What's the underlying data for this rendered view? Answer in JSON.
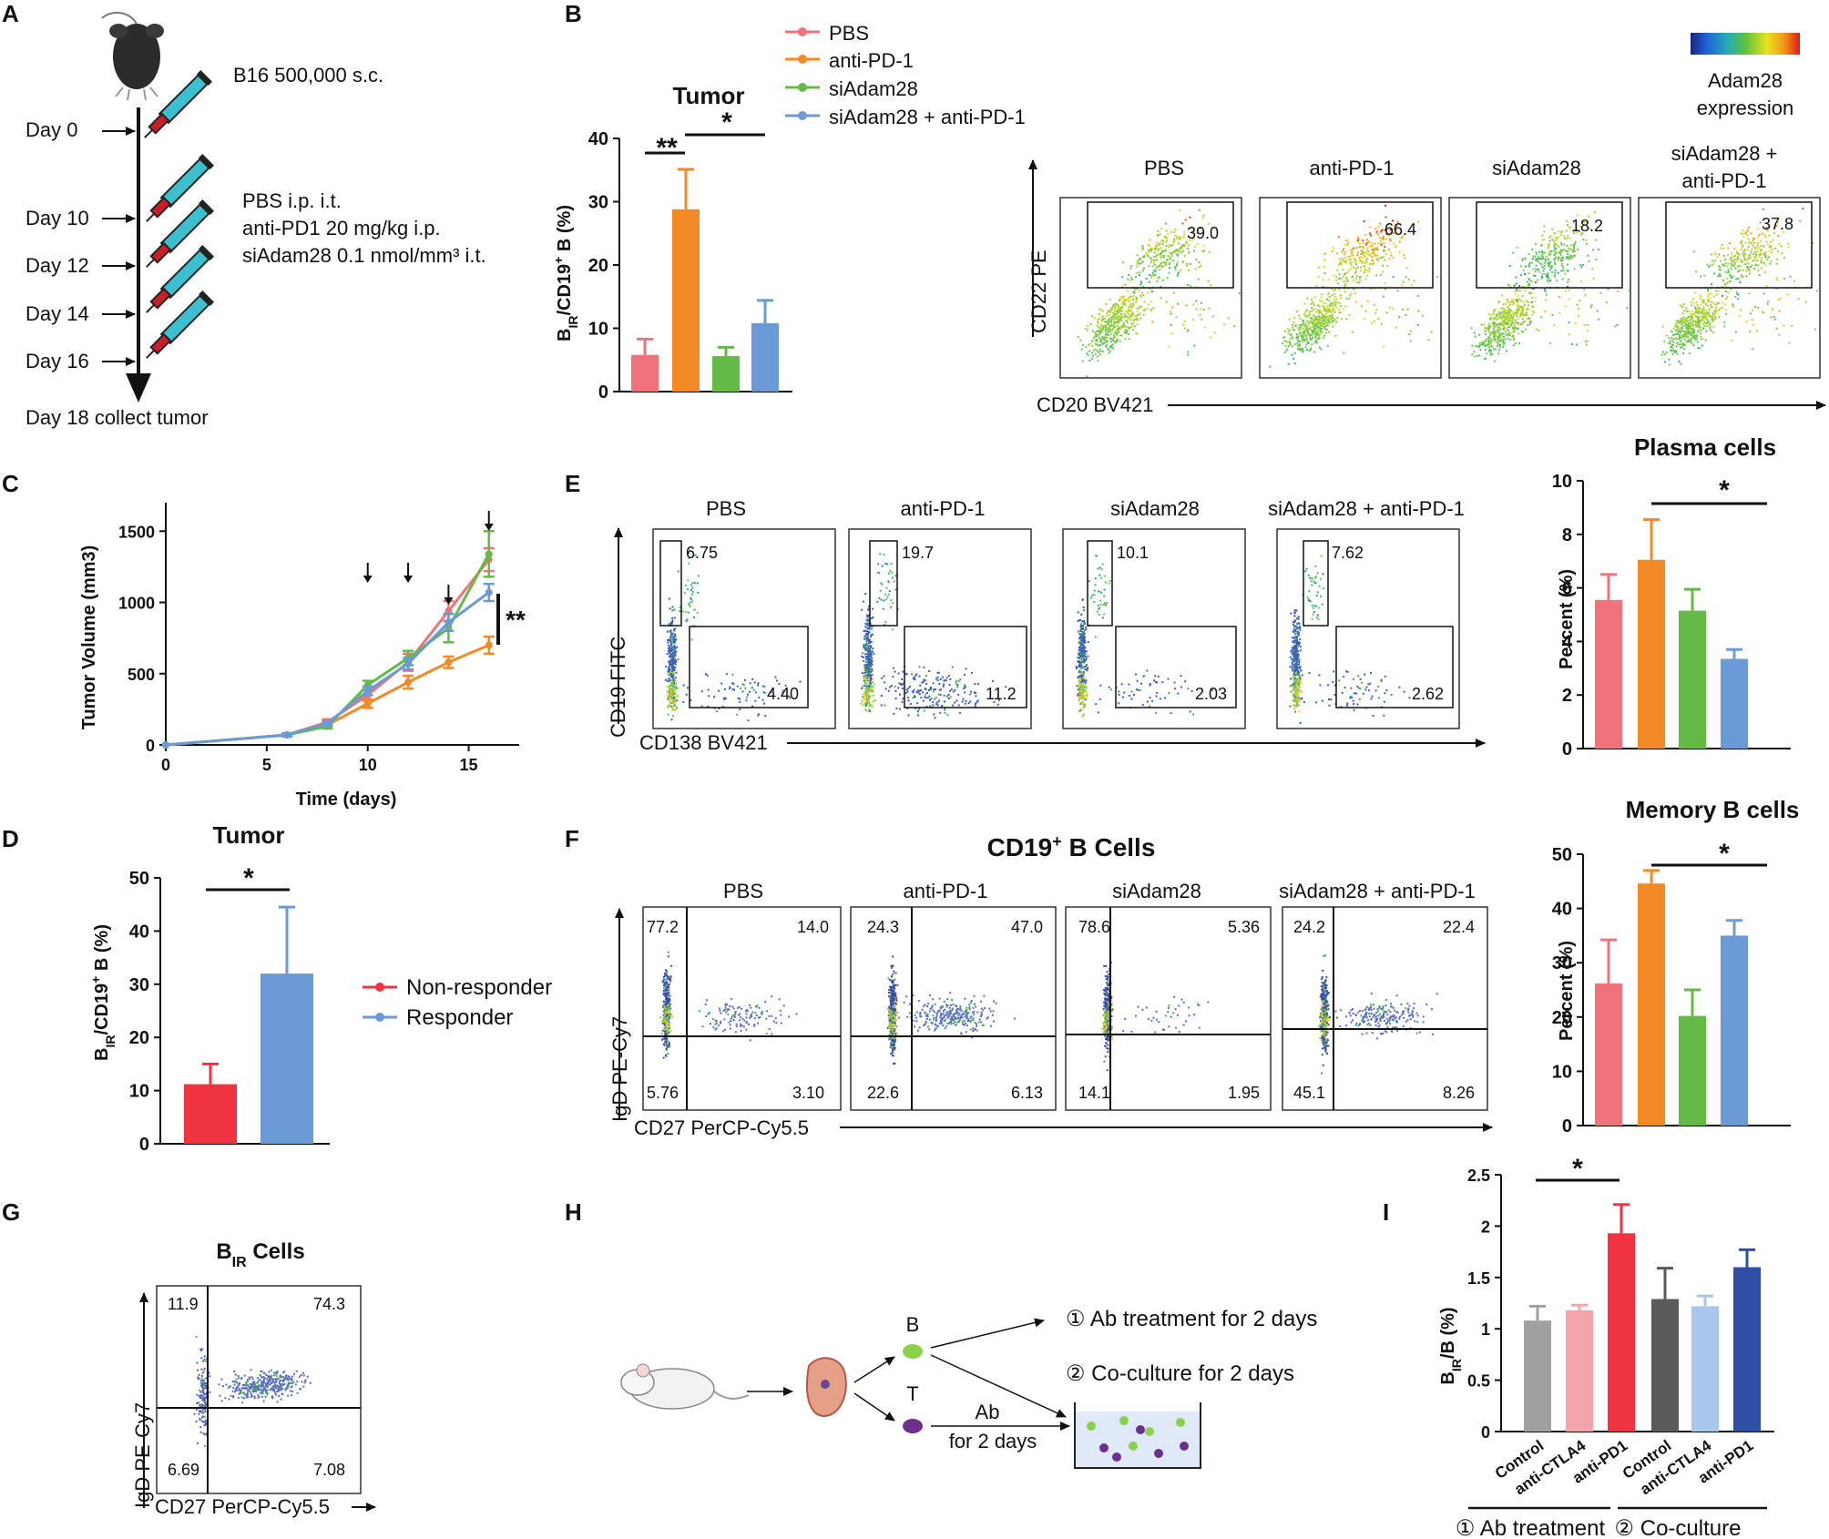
{
  "colors": {
    "pbs": "#f0737b",
    "antipd1": "#f28a25",
    "siadam28": "#63bb46",
    "combo": "#6a9bd6",
    "nonresponder": "#ef3340",
    "responder": "#6a9bd6",
    "control": "#a0a0a0",
    "antictla4": "#f3a5aa",
    "antipd1_red": "#ef3340",
    "co_control": "#5a5a5a",
    "co_antictla4": "#a7c7ec",
    "co_antipd1": "#2e4fa3"
  },
  "panels": [
    {
      "id": "A",
      "label": "A",
      "injection": "B16 500,000 s.c.",
      "treatment": [
        "PBS i.p. i.t.",
        "anti-PD1 20 mg/kg i.p.",
        "siAdam28 0.1 nmol/mm³ i.t."
      ],
      "days": [
        "Day 0",
        "Day 10",
        "Day 12",
        "Day 14",
        "Day 16"
      ],
      "final": "Day 18 collect tumor"
    },
    {
      "id": "B",
      "label": "B"
    },
    {
      "id": "C",
      "label": "C"
    },
    {
      "id": "D",
      "label": "D"
    },
    {
      "id": "E",
      "label": "E"
    },
    {
      "id": "F",
      "label": "F"
    },
    {
      "id": "G",
      "label": "G"
    },
    {
      "id": "H",
      "label": "H",
      "b": "B",
      "t": "T",
      "ab": "Ab",
      "for2days": "for 2 days",
      "step1": "① Ab treatment for 2 days",
      "step2": "② Co-culture for 2 days"
    },
    {
      "id": "I",
      "label": "I"
    }
  ],
  "colorbar": {
    "label1": "Adam28",
    "label2": "expression"
  },
  "flow_B": {
    "xaxis": "CD20 BV421",
    "yaxis": "CD22 PE",
    "titles": [
      "PBS",
      "anti-PD-1",
      "siAdam28",
      "siAdam28 +",
      "anti-PD-1"
    ],
    "gates": [
      "39.0",
      "66.4",
      "18.2",
      "37.8"
    ]
  },
  "flow_E": {
    "xaxis": "CD138 BV421",
    "yaxis": "CD19 FITC",
    "titles": [
      "PBS",
      "anti-PD-1",
      "siAdam28",
      "siAdam28 + anti-PD-1"
    ],
    "upper": [
      "6.75",
      "19.7",
      "10.1",
      "7.62"
    ],
    "lower": [
      "4.40",
      "11.2",
      "2.03",
      "2.62"
    ]
  },
  "flow_F": {
    "title": "CD19",
    "title_sup": "+",
    "title_rest": " B Cells",
    "xaxis": "CD27 PerCP-Cy5.5",
    "yaxis": "IgD PE-Cy7",
    "titles": [
      "PBS",
      "anti-PD-1",
      "siAdam28",
      "siAdam28 + anti-PD-1"
    ],
    "ul": [
      "77.2",
      "24.3",
      "78.6",
      "24.2"
    ],
    "ur": [
      "14.0",
      "47.0",
      "5.36",
      "22.4"
    ],
    "ll": [
      "5.76",
      "22.6",
      "14.1",
      "45.1"
    ],
    "lr": [
      "3.10",
      "6.13",
      "1.95",
      "8.26"
    ]
  },
  "flow_G": {
    "title": "B",
    "title_sub": "IR",
    "title_rest": " Cells",
    "xaxis": "CD27 PerCP-Cy5.5",
    "yaxis": "IgD PE-Cy7",
    "ul": "11.9",
    "ur": "74.3",
    "ll": "6.69",
    "lr": "7.08"
  },
  "chart_data": [
    {
      "panel": "B",
      "type": "bar",
      "title": "Tumor",
      "ylabel_main": "B",
      "ylabel_sub": "IR",
      "ylabel_rest": "/CD19",
      "ylabel_sup": "+",
      "ylabel_end": " B (%)",
      "categories": [
        "PBS",
        "anti-PD-1",
        "siAdam28",
        "siAdam28 + anti-PD-1"
      ],
      "values": [
        5.8,
        28.8,
        5.6,
        10.8
      ],
      "errors": [
        2.5,
        6.3,
        1.4,
        3.6
      ],
      "ylim": [
        0,
        40
      ],
      "yticks": [
        "0",
        "10",
        "20",
        "30",
        "40"
      ],
      "significance": [
        "**",
        "*"
      ]
    },
    {
      "panel": "C",
      "type": "line",
      "xlabel": "Time (days)",
      "ylabel": "Tumor Volume (mm3)",
      "x": [
        0,
        6,
        8,
        10,
        12,
        14,
        16
      ],
      "xticks": [
        "0",
        "5",
        "10",
        "15"
      ],
      "yticks": [
        "0",
        "500",
        "1000",
        "1500"
      ],
      "xlim": [
        0,
        17.5
      ],
      "ylim": [
        0,
        1700
      ],
      "series": [
        {
          "name": "PBS",
          "values": [
            0,
            70,
            160,
            350,
            580,
            940,
            1300
          ],
          "errors": [
            0,
            10,
            20,
            40,
            60,
            70,
            80
          ]
        },
        {
          "name": "anti-PD-1",
          "values": [
            0,
            70,
            140,
            290,
            440,
            580,
            700
          ],
          "errors": [
            0,
            10,
            15,
            30,
            45,
            40,
            60
          ]
        },
        {
          "name": "siAdam28",
          "values": [
            0,
            70,
            130,
            420,
            610,
            820,
            1340
          ],
          "errors": [
            0,
            10,
            15,
            30,
            50,
            100,
            160
          ]
        },
        {
          "name": "siAdam28 + anti-PD-1",
          "values": [
            0,
            70,
            150,
            380,
            570,
            860,
            1070
          ],
          "errors": [
            0,
            10,
            15,
            30,
            40,
            60,
            60
          ]
        }
      ],
      "arrows_at": [
        10,
        12,
        14,
        16
      ],
      "significance": "**"
    },
    {
      "panel": "D",
      "type": "bar",
      "title": "Tumor",
      "ylabel_main": "B",
      "ylabel_sub": "IR",
      "ylabel_rest": "/CD19",
      "ylabel_sup": "+",
      "ylabel_end": " B (%)",
      "categories": [
        "Non-responder",
        "Responder"
      ],
      "values": [
        11.2,
        32.0
      ],
      "errors": [
        3.8,
        12.5
      ],
      "ylim": [
        0,
        50
      ],
      "yticks": [
        "0",
        "10",
        "20",
        "30",
        "40",
        "50"
      ],
      "significance": "*"
    },
    {
      "panel": "E",
      "type": "bar",
      "title": "Plasma cells",
      "ylabel": "Percent (%)",
      "categories": [
        "PBS",
        "anti-PD-1",
        "siAdam28",
        "siAdam28 + anti-PD-1"
      ],
      "values": [
        5.55,
        7.05,
        5.15,
        3.35
      ],
      "errors": [
        0.95,
        1.5,
        0.8,
        0.35
      ],
      "ylim": [
        0,
        10
      ],
      "yticks": [
        "0",
        "2",
        "4",
        "6",
        "8",
        "10"
      ],
      "significance": "*"
    },
    {
      "panel": "F",
      "type": "bar",
      "title": "Memory B cells",
      "ylabel": "Percent (%)",
      "categories": [
        "PBS",
        "anti-PD-1",
        "siAdam28",
        "siAdam28 + anti-PD-1"
      ],
      "values": [
        26.2,
        44.6,
        20.2,
        35.0
      ],
      "errors": [
        8.0,
        2.4,
        4.8,
        2.8
      ],
      "ylim": [
        0,
        50
      ],
      "yticks": [
        "0",
        "10",
        "20",
        "30",
        "40",
        "50"
      ],
      "significance": "*"
    },
    {
      "panel": "I",
      "type": "bar",
      "ylabel_main": "B",
      "ylabel_sub": "IR",
      "ylabel_rest": "/B (%)",
      "categories": [
        "Control",
        "anti-CTLA4",
        "anti-PD1",
        "Control",
        "anti-CTLA4",
        "anti-PD1"
      ],
      "values": [
        1.08,
        1.18,
        1.93,
        1.29,
        1.22,
        1.6
      ],
      "errors": [
        0.14,
        0.05,
        0.28,
        0.3,
        0.1,
        0.17
      ],
      "ylim": [
        0,
        2.5
      ],
      "yticks": [
        "0",
        "0.5",
        "1",
        "1.5",
        "2",
        "2.5"
      ],
      "groups": [
        "① Ab treatment",
        "② Co-culture"
      ],
      "significance": "*"
    }
  ]
}
